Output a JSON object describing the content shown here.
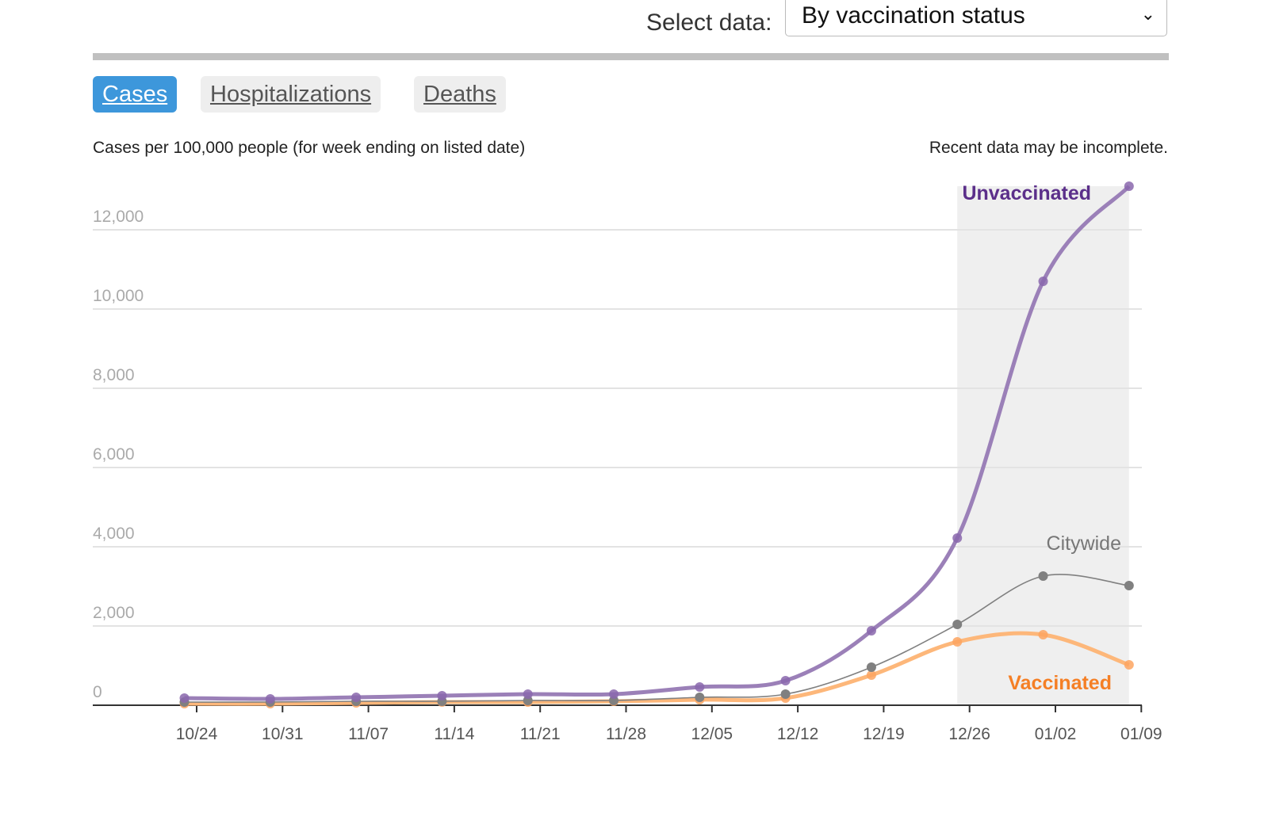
{
  "header": {
    "select_label": "Select data:",
    "select_value": "By vaccination status"
  },
  "tabs": [
    {
      "label": "Cases"
    },
    {
      "label": "Hospitalizations"
    },
    {
      "label": "Deaths"
    }
  ],
  "subtitle": "Cases per 100,000 people (for week ending on listed date)",
  "note": "Recent data may be incomplete.",
  "chart_data": {
    "type": "line",
    "title": "Cases per 100,000 people (for week ending on listed date)",
    "x_tick_labels": [
      "10/24",
      "10/31",
      "11/07",
      "11/14",
      "11/21",
      "11/28",
      "12/05",
      "12/12",
      "12/19",
      "12/26",
      "01/02",
      "01/09"
    ],
    "y_ticks": [
      0,
      2000,
      4000,
      6000,
      8000,
      10000,
      12000
    ],
    "y_tick_labels": [
      "0",
      "2,000",
      "4,000",
      "6,000",
      "8,000",
      "10,000",
      "12,000"
    ],
    "ylim": [
      0,
      13200
    ],
    "x_point_days_from_first_tick": [
      -1,
      6,
      13,
      20,
      27,
      34,
      41,
      48,
      55,
      62,
      69,
      76
    ],
    "incomplete_region_start_index": 9,
    "series": [
      {
        "name": "Unvaccinated",
        "color": "#9b80b8",
        "label_color": "#5b2f8a",
        "values": [
          180,
          160,
          200,
          240,
          280,
          280,
          460,
          620,
          1880,
          4220,
          10700,
          13100
        ]
      },
      {
        "name": "Citywide",
        "color": "#808080",
        "label_color": "#777777",
        "values": [
          80,
          80,
          100,
          100,
          120,
          120,
          200,
          280,
          960,
          2040,
          3260,
          3020
        ]
      },
      {
        "name": "Vaccinated",
        "color": "#fdb77a",
        "label_color": "#f57f25",
        "values": [
          40,
          40,
          60,
          80,
          80,
          100,
          140,
          180,
          760,
          1600,
          1780,
          1020
        ]
      }
    ],
    "grid": true
  }
}
